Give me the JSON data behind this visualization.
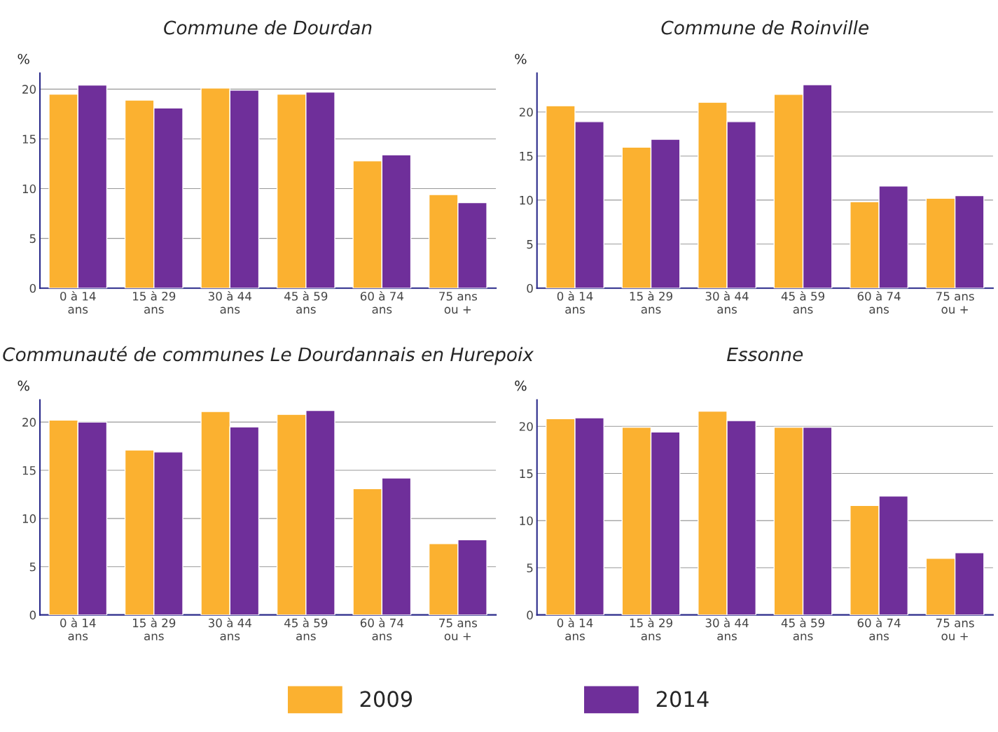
{
  "chart_data": [
    {
      "type": "bar",
      "title": "Commune de Dourdan",
      "ylabel": "%",
      "categories": [
        "0 à 14\nans",
        "15 à 29\nans",
        "30 à 44\nans",
        "45 à 59\nans",
        "60 à 74\nans",
        "75 ans\nou +"
      ],
      "ylim": [
        0,
        21.6
      ],
      "yticks": [
        0,
        5,
        10,
        15,
        20
      ],
      "grid": "y",
      "legend": "bottom",
      "series": [
        {
          "name": "2009",
          "color": "#fbb130",
          "values": [
            19.5,
            18.9,
            20.1,
            19.5,
            12.8,
            9.4
          ]
        },
        {
          "name": "2014",
          "color": "#6f2f9a",
          "values": [
            20.4,
            18.1,
            19.9,
            19.7,
            13.4,
            8.6
          ]
        }
      ]
    },
    {
      "type": "bar",
      "title": "Commune de Roinville",
      "ylabel": "%",
      "categories": [
        "0 à 14\nans",
        "15 à 29\nans",
        "30 à 44\nans",
        "45 à 59\nans",
        "60 à 74\nans",
        "75 ans\nou +"
      ],
      "ylim": [
        0,
        24.4
      ],
      "yticks": [
        0,
        5,
        10,
        15,
        20
      ],
      "grid": "y",
      "series": [
        {
          "name": "2009",
          "color": "#fbb130",
          "values": [
            20.7,
            16.0,
            21.1,
            22.0,
            9.8,
            10.2
          ]
        },
        {
          "name": "2014",
          "color": "#6f2f9a",
          "values": [
            18.9,
            16.9,
            18.9,
            23.1,
            11.6,
            10.5
          ]
        }
      ]
    },
    {
      "type": "bar",
      "title": "Communauté de communes Le Dourdannais en Hurepoix",
      "ylabel": "%",
      "categories": [
        "0 à 14\nans",
        "15 à 29\nans",
        "30 à 44\nans",
        "45 à 59\nans",
        "60 à 74\nans",
        "75 ans\nou +"
      ],
      "ylim": [
        0,
        22.3
      ],
      "yticks": [
        0,
        5,
        10,
        15,
        20
      ],
      "grid": "y",
      "series": [
        {
          "name": "2009",
          "color": "#fbb130",
          "values": [
            20.2,
            17.1,
            21.1,
            20.8,
            13.1,
            7.4
          ]
        },
        {
          "name": "2014",
          "color": "#6f2f9a",
          "values": [
            20.0,
            16.9,
            19.5,
            21.2,
            14.2,
            7.8
          ]
        }
      ]
    },
    {
      "type": "bar",
      "title": "Essonne",
      "ylabel": "%",
      "categories": [
        "0 à 14\nans",
        "15 à 29\nans",
        "30 à 44\nans",
        "45 à 59\nans",
        "60 à 74\nans",
        "75 ans\nou +"
      ],
      "ylim": [
        0,
        22.8
      ],
      "yticks": [
        0,
        5,
        10,
        15,
        20
      ],
      "grid": "y",
      "series": [
        {
          "name": "2009",
          "color": "#fbb130",
          "values": [
            20.8,
            19.9,
            21.6,
            19.9,
            11.6,
            6.0
          ]
        },
        {
          "name": "2014",
          "color": "#6f2f9a",
          "values": [
            20.9,
            19.4,
            20.6,
            19.9,
            12.6,
            6.6
          ]
        }
      ]
    }
  ]
}
